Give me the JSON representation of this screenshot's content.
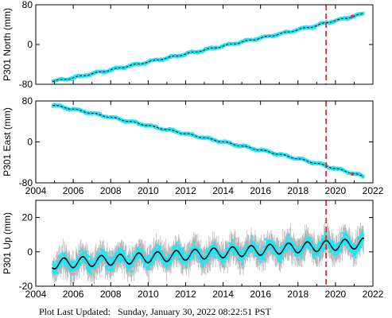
{
  "footer": {
    "text": "Plot Last Updated:   Sunday, January 30, 2022 08:22:51 PST"
  },
  "colors": {
    "data": "#1ee6f5",
    "error_bar": "#b4b4b4",
    "model": "#000000",
    "event_line": "#e01b1b",
    "outlier": "#d63030",
    "frame": "#000000"
  },
  "chart_data": [
    {
      "type": "scatter",
      "ylabel": "P301 North (mm)",
      "xlim": [
        2004,
        2022
      ],
      "ylim": [
        -80,
        80
      ],
      "xticks": [
        "2004",
        "2006",
        "2008",
        "2010",
        "2012",
        "2014",
        "2016",
        "2018",
        "2020",
        "2022"
      ],
      "yticks": [
        "-80",
        "0",
        "80"
      ],
      "x_tick_labels_shown": false,
      "series": [
        {
          "x": [
            2004.9,
            2006,
            2007,
            2008,
            2009,
            2010,
            2011,
            2012,
            2013,
            2014,
            2015,
            2016,
            2017,
            2018,
            2019,
            2019.5,
            2020,
            2021,
            2021.5
          ],
          "y": [
            -74,
            -67,
            -59,
            -51,
            -43,
            -35,
            -27,
            -19,
            -11,
            -3,
            5,
            13,
            21,
            30,
            38,
            44,
            48,
            57,
            62
          ]
        }
      ],
      "event_x": 2019.5,
      "outlier": {
        "x": 2020.9,
        "y": 57
      }
    },
    {
      "type": "scatter",
      "ylabel": "P301 East (mm)",
      "xlim": [
        2004,
        2022
      ],
      "ylim": [
        -80,
        80
      ],
      "xticks": [
        "2004",
        "2006",
        "2008",
        "2010",
        "2012",
        "2014",
        "2016",
        "2018",
        "2020",
        "2022"
      ],
      "yticks": [
        "-80",
        "0",
        "80"
      ],
      "x_tick_labels_shown": true,
      "series": [
        {
          "x": [
            2004.9,
            2006,
            2007,
            2008,
            2009,
            2010,
            2011,
            2012,
            2013,
            2014,
            2015,
            2016,
            2017,
            2018,
            2019,
            2019.5,
            2020,
            2021,
            2021.5
          ],
          "y": [
            72,
            64,
            56,
            48,
            40,
            32,
            24,
            16,
            8,
            0,
            -8,
            -16,
            -24,
            -33,
            -42,
            -47,
            -52,
            -62,
            -68
          ]
        }
      ],
      "event_x": 2019.5,
      "outlier": {
        "x": 2020.9,
        "y": -63
      }
    },
    {
      "type": "scatter",
      "ylabel": "P301 Up (mm)",
      "xlim": [
        2004,
        2022
      ],
      "ylim": [
        -20,
        30
      ],
      "xticks": [
        "2004",
        "2006",
        "2008",
        "2010",
        "2012",
        "2014",
        "2016",
        "2018",
        "2020",
        "2022"
      ],
      "yticks": [
        "-20",
        "0",
        "20"
      ],
      "x_tick_labels_shown": true,
      "trend": {
        "x": [
          2004.9,
          2021.5
        ],
        "y": [
          -7,
          5
        ]
      },
      "seasonal_amplitude_mm": 3,
      "scatter_half_range_mm": 8,
      "error_half_range_mm": 6,
      "event_x": 2019.5
    }
  ]
}
